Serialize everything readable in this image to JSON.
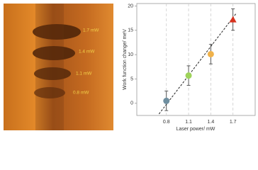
{
  "image_labels": [
    "1.7 mW",
    "1.4 mW",
    "1.1 mW",
    "0.8 mW"
  ],
  "chart_data": {
    "type": "scatter",
    "x": [
      0.8,
      1.1,
      1.4,
      1.7
    ],
    "values": [
      0.5,
      5.7,
      10.1,
      17.2
    ],
    "errors": [
      2,
      2,
      2,
      2.2
    ],
    "colors": [
      "#6f8fa0",
      "#9ed35a",
      "#f0b24a",
      "#d8321e"
    ],
    "markers": [
      "circle",
      "circle",
      "circle",
      "triangle"
    ],
    "xlim": [
      0.4,
      2.0
    ],
    "ylim": [
      -2.5,
      20.5
    ],
    "xticks": [
      0.8,
      1.1,
      1.4,
      1.7
    ],
    "yticks": [
      0,
      5,
      10,
      15,
      20
    ],
    "x_grid": true,
    "trendline": {
      "x": [
        0.7,
        1.75
      ],
      "y": [
        -2.2,
        18.6
      ]
    },
    "xlabel": "Laser power/ mW",
    "ylabel": "Work function change/ meV"
  }
}
